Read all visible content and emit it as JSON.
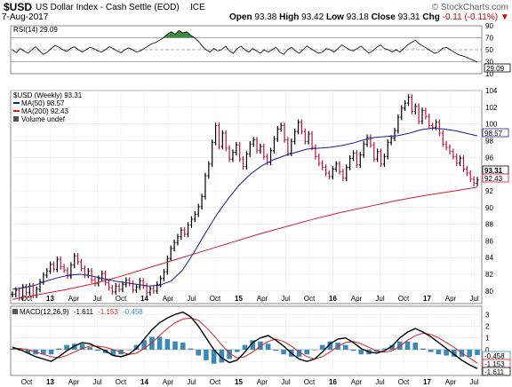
{
  "header": {
    "symbol": "$USD",
    "name": "US Dollar Index - Cash Settle (EOD)",
    "exchange": "ICE",
    "watermark": "© StockCharts.com",
    "date": "7-Aug-2017",
    "open_label": "Open",
    "open": "93.38",
    "high_label": "High",
    "high": "93.42",
    "low_label": "Low",
    "low": "93.18",
    "close_label": "Close",
    "close": "93.31",
    "chg_label": "Chg",
    "chg": "-0.11 (-0.11%)",
    "chg_arrow": "▼"
  },
  "colors": {
    "ma50": "#1a1a9c",
    "ma200": "#d81b32",
    "price_up": "#000000",
    "price_down": "#c0143c",
    "macd": "#000000",
    "signal": "#dd2222",
    "hist": "#3a8ab8",
    "rsi_fill": "#3c8a3c"
  },
  "x_axis": {
    "labels": [
      "Oct",
      "13",
      "Apr",
      "Jul",
      "Oct",
      "14",
      "Apr",
      "Jul",
      "Oct",
      "15",
      "Apr",
      "Jul",
      "Oct",
      "16",
      "Apr",
      "Jul",
      "Oct",
      "17",
      "Apr",
      "Jul"
    ],
    "bold": [
      "13",
      "14",
      "15",
      "16",
      "17"
    ]
  },
  "chart_data": [
    {
      "type": "line",
      "panel": "RSI",
      "legend": "RSI(14) 29.09",
      "ylim": [
        10,
        90
      ],
      "ticks": [
        10,
        30,
        50,
        70,
        90
      ],
      "reference_lines": [
        30,
        50,
        70
      ],
      "last_value_label": "29.09",
      "series": [
        {
          "name": "RSI(14)",
          "values": [
            50,
            45,
            52,
            48,
            44,
            50,
            55,
            48,
            42,
            46,
            52,
            57,
            54,
            50,
            47,
            52,
            55,
            50,
            46,
            50,
            54,
            52,
            48,
            46,
            50,
            55,
            52,
            48,
            45,
            50,
            53,
            50,
            46,
            48,
            52,
            56,
            60,
            62,
            66,
            70,
            76,
            80,
            76,
            82,
            78,
            80,
            74,
            70,
            64,
            56,
            50,
            46,
            52,
            48,
            50,
            56,
            48,
            44,
            52,
            56,
            50,
            46,
            52,
            48,
            44,
            50,
            46,
            50,
            54,
            46,
            42,
            50,
            54,
            48,
            44,
            50,
            56,
            52,
            48,
            44,
            46,
            52,
            50,
            46,
            52,
            58,
            54,
            50,
            48,
            52,
            56,
            50,
            44,
            48,
            54,
            58,
            52,
            50,
            46,
            50,
            46,
            52,
            58,
            62,
            66,
            60,
            56,
            52,
            48,
            44,
            46,
            52,
            54,
            50,
            46,
            42,
            40,
            38,
            35,
            32,
            29.09
          ]
        }
      ]
    },
    {
      "type": "line",
      "panel": "Price",
      "legend_title": "$USD (Weekly) 93.31",
      "legend": [
        {
          "name": "MA(50) 98.57",
          "color": "#1a1a9c"
        },
        {
          "name": "MA(200) 92.43",
          "color": "#d81b32"
        },
        {
          "name": "Volume undef",
          "color": "#555555"
        }
      ],
      "ylim": [
        78.5,
        104
      ],
      "ticks": [
        80,
        82,
        84,
        86,
        88,
        90,
        92,
        94,
        96,
        98,
        100,
        102,
        104
      ],
      "last_labels": [
        "98.57",
        "93.31",
        "92.43"
      ],
      "x_weeks": 250,
      "series": [
        {
          "name": "$USD",
          "values": [
            79.6,
            80.1,
            79.2,
            80.5,
            79.8,
            80.6,
            79.5,
            80.2,
            81.1,
            81.9,
            82.4,
            83.2,
            82.6,
            83.8,
            82.9,
            82.5,
            81.8,
            83.1,
            84.2,
            83.5,
            82.7,
            81.9,
            82.4,
            81.3,
            80.9,
            81.5,
            82.1,
            81.0,
            80.4,
            79.9,
            80.6,
            80.2,
            80.8,
            81.3,
            80.9,
            80.1,
            80.5,
            81.2,
            80.6,
            79.8,
            80.3,
            80.0,
            80.8,
            81.5,
            82.3,
            83.9,
            85.1,
            85.8,
            86.5,
            87.3,
            86.8,
            87.9,
            88.6,
            89.2,
            90.1,
            91.3,
            93.8,
            95.2,
            97.8,
            99.8,
            97.3,
            98.9,
            97.1,
            95.8,
            96.6,
            97.5,
            95.8,
            94.9,
            96.4,
            97.6,
            98.1,
            96.8,
            97.3,
            96.1,
            95.4,
            96.8,
            98.2,
            99.4,
            99.8,
            98.1,
            96.5,
            97.9,
            99.1,
            100.2,
            99.1,
            97.9,
            98.8,
            97.2,
            96.1,
            95.3,
            94.8,
            94.1,
            93.7,
            94.6,
            95.2,
            94.3,
            93.5,
            94.8,
            95.9,
            96.5,
            95.1,
            96.3,
            97.6,
            98.4,
            97.5,
            95.8,
            96.7,
            95.2,
            96.1,
            97.8,
            98.3,
            99.2,
            100.8,
            101.9,
            102.5,
            103.2,
            101.5,
            102.1,
            100.3,
            101.6,
            100.9,
            99.8,
            99.6,
            100.2,
            98.9,
            97.6,
            97.2,
            96.7,
            96.1,
            95.3,
            95.9,
            94.6,
            94.1,
            93.4,
            92.9,
            93.31
          ]
        },
        {
          "name": "MA(50)",
          "values": [
            80.2,
            80.4,
            80.7,
            81.2,
            81.6,
            81.9,
            82.0,
            81.8,
            81.5,
            81.2,
            81.0,
            80.8,
            80.6,
            80.7,
            81.2,
            82.5,
            84.6,
            86.9,
            89.1,
            91.0,
            92.7,
            94.0,
            95.0,
            95.7,
            96.2,
            96.6,
            97.0,
            97.1,
            97.2,
            97.4,
            97.7,
            98.1,
            98.4,
            98.5,
            98.6,
            98.9,
            99.3,
            99.5,
            99.4,
            99.2,
            98.9,
            98.57
          ]
        },
        {
          "name": "MA(200)",
          "values": [
            79.0,
            79.6,
            80.2,
            80.9,
            81.8,
            82.8,
            83.8,
            84.8,
            85.8,
            86.8,
            87.7,
            88.6,
            89.4,
            90.1,
            90.8,
            91.4,
            91.9,
            92.43
          ]
        }
      ]
    },
    {
      "type": "line",
      "panel": "MACD",
      "legend": [
        "MACD(12,26,9)",
        "-1.611",
        "-1.153",
        "-0.458"
      ],
      "ylim": [
        -2.2,
        3.7
      ],
      "ticks": [
        -1,
        0,
        1,
        2,
        3
      ],
      "last_labels": [
        "-0.458",
        "-1.153",
        "-1.611"
      ],
      "series": [
        {
          "name": "MACD",
          "values": [
            0.2,
            0.0,
            -0.3,
            -0.6,
            -0.8,
            -1.0,
            -0.6,
            -0.1,
            0.3,
            0.6,
            0.5,
            0.2,
            -0.1,
            -0.5,
            -0.6,
            -0.4,
            0.1,
            0.9,
            1.7,
            2.3,
            2.7,
            3.0,
            3.2,
            2.8,
            2.0,
            1.0,
            0.0,
            -0.7,
            -1.1,
            -0.9,
            -0.2,
            0.6,
            1.0,
            1.2,
            0.8,
            0.3,
            -0.3,
            -0.8,
            -1.0,
            -0.8,
            -0.2,
            0.5,
            0.9,
            1.0,
            0.6,
            0.1,
            -0.2,
            -0.3,
            -0.1,
            0.3,
            1.0,
            1.5,
            1.8,
            1.5,
            1.1,
            0.6,
            0.1,
            -0.4,
            -0.9,
            -1.3,
            -1.611
          ]
        },
        {
          "name": "Signal",
          "values": [
            0.1,
            0.1,
            0.0,
            -0.2,
            -0.4,
            -0.6,
            -0.7,
            -0.5,
            -0.2,
            0.1,
            0.3,
            0.3,
            0.2,
            0.0,
            -0.2,
            -0.4,
            -0.3,
            0.1,
            0.6,
            1.2,
            1.8,
            2.3,
            2.6,
            2.7,
            2.5,
            1.9,
            1.2,
            0.4,
            -0.3,
            -0.7,
            -0.6,
            -0.2,
            0.3,
            0.7,
            0.9,
            0.7,
            0.3,
            -0.2,
            -0.6,
            -0.8,
            -0.6,
            -0.2,
            0.3,
            0.6,
            0.7,
            0.5,
            0.2,
            -0.1,
            -0.2,
            -0.1,
            0.3,
            0.8,
            1.2,
            1.4,
            1.3,
            1.0,
            0.6,
            0.2,
            -0.3,
            -0.7,
            -1.153
          ]
        }
      ]
    }
  ]
}
